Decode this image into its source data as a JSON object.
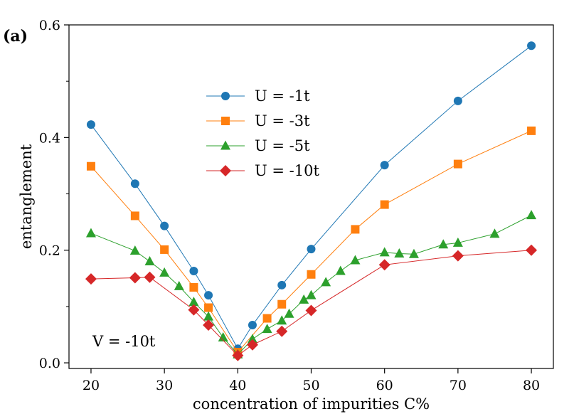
{
  "chart_data": {
    "type": "line",
    "title": "",
    "panel_label": "(a)",
    "xlabel": "concentration of impurities C%",
    "ylabel": "entanglement",
    "xlim": [
      17,
      83
    ],
    "ylim": [
      -0.01,
      0.6
    ],
    "xticks": [
      20,
      30,
      40,
      50,
      60,
      70,
      80
    ],
    "xtick_labels": [
      "20",
      "30",
      "40",
      "50",
      "60",
      "70",
      "80"
    ],
    "yticks": [
      0.0,
      0.2,
      0.4,
      0.6
    ],
    "ytick_labels": [
      "0.0",
      "0.2",
      "0.4",
      "0.6"
    ],
    "yminor_ticks": [
      0.1,
      0.3,
      0.5
    ],
    "grid": false,
    "legend_position": "upper-center",
    "annotation": "V = -10t",
    "series": [
      {
        "name": "U = -1t",
        "color": "#1f77b4",
        "marker": "circle",
        "x": [
          20,
          26,
          30,
          34,
          36,
          40,
          42,
          46,
          50,
          60,
          70,
          80
        ],
        "y": [
          0.423,
          0.318,
          0.243,
          0.163,
          0.12,
          0.025,
          0.067,
          0.138,
          0.202,
          0.351,
          0.465,
          0.563
        ]
      },
      {
        "name": "U = -3t",
        "color": "#ff7f0e",
        "marker": "square",
        "x": [
          20,
          26,
          30,
          34,
          36,
          40,
          44,
          46,
          50,
          56,
          60,
          70,
          80
        ],
        "y": [
          0.349,
          0.261,
          0.201,
          0.134,
          0.098,
          0.019,
          0.079,
          0.104,
          0.157,
          0.237,
          0.281,
          0.353,
          0.412
        ]
      },
      {
        "name": "U = -5t",
        "color": "#2ca02c",
        "marker": "triangle",
        "x": [
          20,
          26,
          28,
          30,
          32,
          34,
          36,
          38,
          40,
          42,
          44,
          46,
          47,
          49,
          50,
          52,
          54,
          56,
          60,
          62,
          64,
          68,
          70,
          75,
          80
        ],
        "y": [
          0.23,
          0.199,
          0.18,
          0.16,
          0.136,
          0.108,
          0.082,
          0.045,
          0.015,
          0.042,
          0.06,
          0.075,
          0.087,
          0.112,
          0.12,
          0.143,
          0.163,
          0.182,
          0.196,
          0.194,
          0.193,
          0.21,
          0.213,
          0.229,
          0.262
        ]
      },
      {
        "name": "U = -10t",
        "color": "#d62728",
        "marker": "diamond",
        "x": [
          20,
          26,
          28,
          34,
          36,
          40,
          42,
          46,
          50,
          60,
          70,
          80
        ],
        "y": [
          0.149,
          0.151,
          0.152,
          0.094,
          0.067,
          0.013,
          0.032,
          0.056,
          0.093,
          0.174,
          0.19,
          0.2
        ]
      }
    ]
  }
}
